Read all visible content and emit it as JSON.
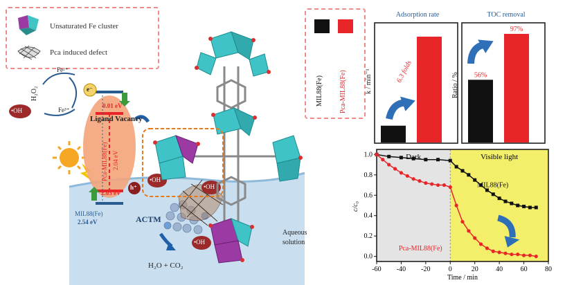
{
  "legend": {
    "fe_cluster_label": "Unsaturated Fe cluster",
    "defect_label": "Pca induced defect"
  },
  "scheme": {
    "h2o2": "H₂O₂",
    "fe2": "Fe²⁺",
    "fe3": "Fe³⁺",
    "oh": "•OH",
    "electron": "e⁻",
    "hole": "h⁺",
    "cb_value": "0.01 eV",
    "vb_value": "2.03 eV",
    "ligand_vacancy": "Ligand Vacancy",
    "band_gap_label": "Pca-MIL88(Fe)",
    "band_gap_value": "2.04 eV",
    "ref_label": "MIL88(Fe)",
    "ref_gap": "2.54 eV",
    "actm": "ACTM",
    "products": "H₂O + CO₂",
    "aqueous": "Aqueous solution"
  },
  "mof_legend": {
    "series1": "MIL88(Fe)",
    "series2": "Pca-MIL88(Fe)",
    "color1": "#111111",
    "color2": "#e8262a"
  },
  "chart_data": [
    {
      "type": "bar",
      "title": "Adsorption rate",
      "ylabel": "k / min⁻¹",
      "categories": [
        "MIL88(Fe)",
        "Pca-MIL88(Fe)"
      ],
      "values": [
        1,
        6.3
      ],
      "ylim": [
        0,
        7
      ],
      "annotation": "6.3 folds"
    },
    {
      "type": "bar",
      "title": "TOC removal",
      "ylabel": "Ratio / %",
      "categories": [
        "MIL88(Fe)",
        "Pca-MIL88(Fe)"
      ],
      "values": [
        56,
        97
      ],
      "ylim": [
        0,
        105
      ],
      "data_labels": [
        "56%",
        "97%"
      ]
    },
    {
      "type": "line",
      "xlabel": "Time / min",
      "ylabel": "c/c₀",
      "xlim": [
        -60,
        80
      ],
      "ylim": [
        -0.05,
        1.05
      ],
      "xticks": [
        -60,
        -40,
        -20,
        0,
        20,
        40,
        60,
        80
      ],
      "yticks": [
        0.0,
        0.2,
        0.4,
        0.6,
        0.8,
        1.0
      ],
      "regions": [
        {
          "label": "Dark",
          "from": -60,
          "to": 0,
          "color": "#e4e4e4"
        },
        {
          "label": "Visible light",
          "from": 0,
          "to": 80,
          "color": "#f3ef6a"
        }
      ],
      "series": [
        {
          "name": "MIL88(Fe)",
          "color": "#111111",
          "x": [
            -60,
            -50,
            -40,
            -30,
            -20,
            -10,
            0,
            5,
            10,
            15,
            20,
            25,
            30,
            35,
            40,
            45,
            50,
            55,
            60,
            65,
            70
          ],
          "y": [
            1.0,
            0.98,
            0.97,
            0.96,
            0.95,
            0.95,
            0.94,
            0.88,
            0.84,
            0.8,
            0.75,
            0.7,
            0.65,
            0.61,
            0.57,
            0.54,
            0.52,
            0.5,
            0.49,
            0.48,
            0.48
          ]
        },
        {
          "name": "Pca-MIL88(Fe)",
          "color": "#e8262a",
          "x": [
            -60,
            -55,
            -50,
            -45,
            -40,
            -35,
            -30,
            -25,
            -20,
            -15,
            -10,
            -5,
            0,
            5,
            10,
            15,
            20,
            25,
            30,
            35,
            40,
            45,
            50,
            55,
            60,
            65,
            70
          ],
          "y": [
            1.0,
            0.95,
            0.9,
            0.86,
            0.82,
            0.79,
            0.76,
            0.74,
            0.72,
            0.71,
            0.7,
            0.7,
            0.68,
            0.5,
            0.34,
            0.25,
            0.18,
            0.12,
            0.08,
            0.05,
            0.04,
            0.03,
            0.02,
            0.02,
            0.01,
            0.01,
            0.0
          ]
        }
      ]
    }
  ]
}
